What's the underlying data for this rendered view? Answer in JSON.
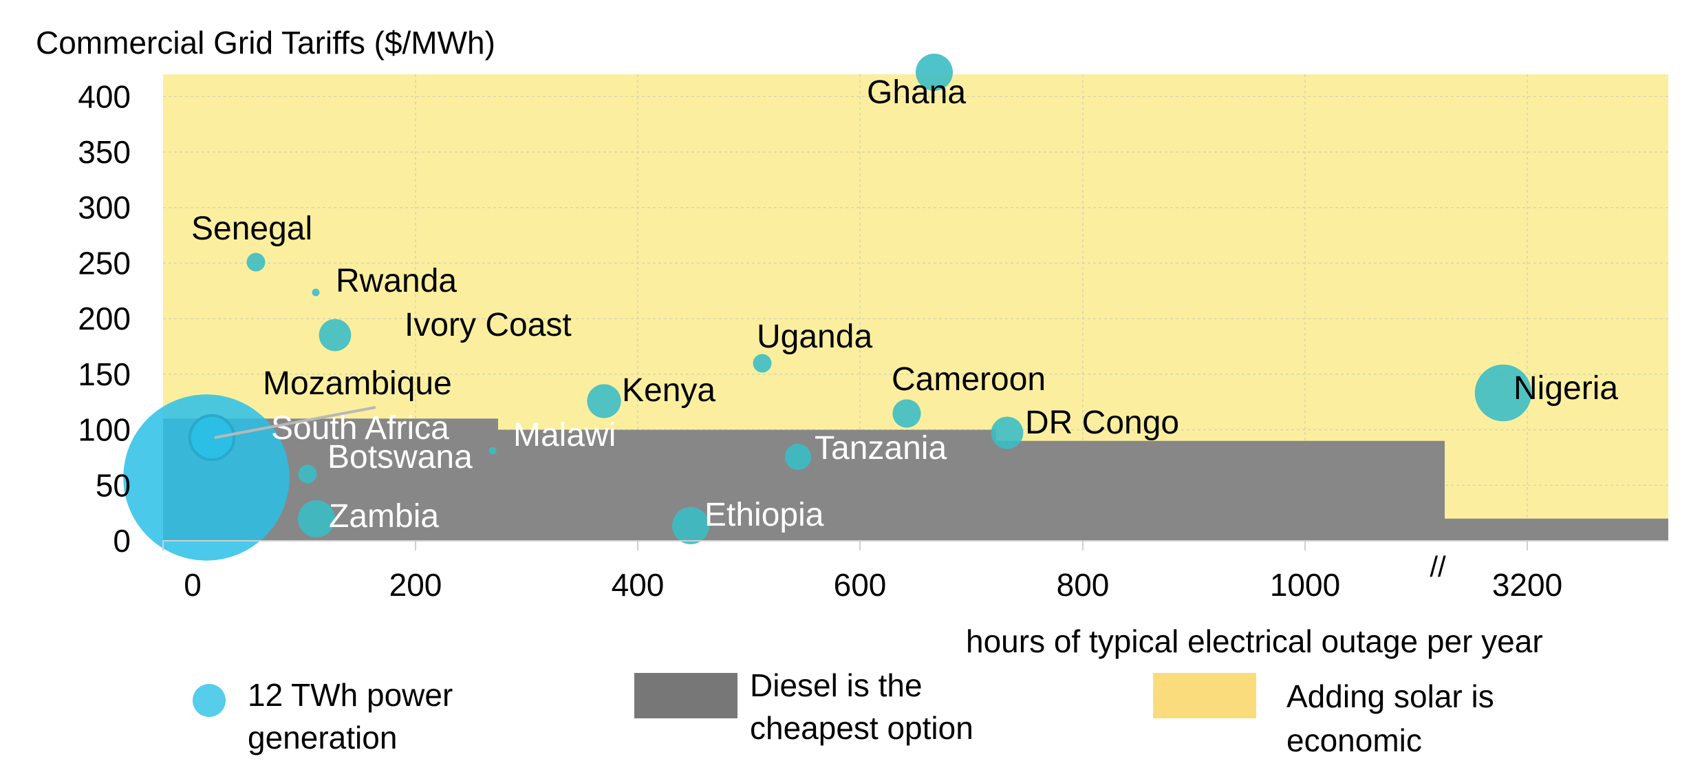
{
  "chart_data": {
    "type": "scatter",
    "title": "",
    "ylabel": "Commercial Grid Tariffs ($/MWh)",
    "xlabel": "hours of typical electrical outage per year",
    "ylim": [
      0,
      420
    ],
    "y_ticks": [
      "0",
      "50",
      "100",
      "150",
      "200",
      "250",
      "300",
      "350",
      "400"
    ],
    "x_ticks": [
      "0",
      "200",
      "400",
      "600",
      "800",
      "1000",
      "3200"
    ],
    "axis_break_label": "//",
    "grid": true,
    "colors": {
      "solar_region": "#fbef9f",
      "diesel_region": "#878787",
      "bubble": "#2ac0e6",
      "bubble_teal": "#3cbdc4",
      "grid": "#d8d4b0"
    },
    "regions": [
      {
        "name": "diesel",
        "segments": [
          {
            "x_from": 0,
            "x_to": 300,
            "y_to": 110
          },
          {
            "x_from": 300,
            "x_to": 1150,
            "y_to": 100
          },
          {
            "x_from": 750,
            "x_to": 1150,
            "y_to": 90
          },
          {
            "x_from": 1150,
            "x_to": 1350,
            "y_to": 20
          }
        ]
      }
    ],
    "points": [
      {
        "label": "Ghana",
        "x": 690,
        "y": 420,
        "twh": 12
      },
      {
        "label": "Senegal",
        "x": 80,
        "y": 250,
        "twh": 3
      },
      {
        "label": "Rwanda",
        "x": 135,
        "y": 223,
        "twh": 0.5
      },
      {
        "label": "Ivory Coast",
        "x": 155,
        "y": 185,
        "twh": 9
      },
      {
        "label": "Uganda",
        "x": 535,
        "y": 160,
        "twh": 3
      },
      {
        "label": "Kenya",
        "x": 395,
        "y": 127,
        "twh": 10
      },
      {
        "label": "Cameroon",
        "x": 665,
        "y": 115,
        "twh": 7
      },
      {
        "label": "Nigeria",
        "x": 1200,
        "y": 133,
        "twh": 28
      },
      {
        "label": "Mozambique",
        "x": 42,
        "y": 93,
        "twh": 17
      },
      {
        "label": "DR Congo",
        "x": 755,
        "y": 98,
        "twh": 9
      },
      {
        "label": "South Africa",
        "x": 40,
        "y": 58,
        "twh": 240
      },
      {
        "label": "Malawi",
        "x": 295,
        "y": 83,
        "twh": 0.5
      },
      {
        "label": "Botswana",
        "x": 130,
        "y": 60,
        "twh": 3
      },
      {
        "label": "Tanzania",
        "x": 568,
        "y": 75,
        "twh": 6
      },
      {
        "label": "Zambia",
        "x": 135,
        "y": 20,
        "twh": 12
      },
      {
        "label": "Ethiopia",
        "x": 470,
        "y": 13,
        "twh": 12
      }
    ],
    "legend": [
      {
        "label_lines": [
          "12 TWh power",
          "generation"
        ]
      },
      {
        "label_lines": [
          "Diesel is the",
          "cheapest option"
        ]
      },
      {
        "label_lines": [
          "Adding solar is",
          "economic"
        ]
      }
    ]
  }
}
